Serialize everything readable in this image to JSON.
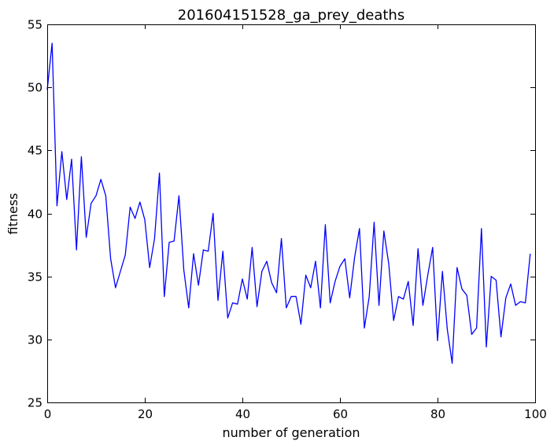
{
  "chart_data": {
    "type": "line",
    "title": "201604151528_ga_prey_deaths",
    "xlabel": "number of generation",
    "ylabel": "fitness",
    "xlim": [
      0,
      100
    ],
    "ylim": [
      25,
      55
    ],
    "xticks": [
      "0",
      "20",
      "40",
      "60",
      "80",
      "100"
    ],
    "yticks": [
      "25",
      "30",
      "35",
      "40",
      "45",
      "50",
      "55"
    ],
    "grid": false,
    "series": [
      {
        "color": "#0000ff",
        "x": [
          0,
          1,
          2,
          3,
          4,
          5,
          6,
          7,
          8,
          9,
          10,
          11,
          12,
          13,
          14,
          15,
          16,
          17,
          18,
          19,
          20,
          21,
          22,
          23,
          24,
          25,
          26,
          27,
          28,
          29,
          30,
          31,
          32,
          33,
          34,
          35,
          36,
          37,
          38,
          39,
          40,
          41,
          42,
          43,
          44,
          45,
          46,
          47,
          48,
          49,
          50,
          51,
          52,
          53,
          54,
          55,
          56,
          57,
          58,
          59,
          60,
          61,
          62,
          63,
          64,
          65,
          66,
          67,
          68,
          69,
          70,
          71,
          72,
          73,
          74,
          75,
          76,
          77,
          78,
          79,
          80,
          81,
          82,
          83,
          84,
          85,
          86,
          87,
          88,
          89,
          90,
          91,
          92,
          93,
          94,
          95,
          96,
          97,
          98,
          99
        ],
        "y": [
          49.8,
          53.5,
          40.6,
          44.9,
          41.1,
          44.3,
          37.1,
          44.5,
          38.1,
          40.8,
          41.4,
          42.7,
          41.4,
          36.4,
          34.1,
          35.4,
          36.7,
          40.5,
          39.6,
          40.9,
          39.5,
          35.7,
          38.0,
          43.2,
          33.4,
          37.7,
          37.8,
          41.4,
          35.5,
          32.5,
          36.8,
          34.3,
          37.1,
          37.0,
          40.0,
          33.1,
          37.0,
          31.7,
          32.9,
          32.8,
          34.8,
          33.2,
          37.3,
          32.6,
          35.4,
          36.2,
          34.5,
          33.7,
          38.0,
          32.5,
          33.4,
          33.4,
          31.2,
          35.1,
          34.1,
          36.2,
          32.5,
          39.1,
          32.9,
          34.6,
          35.8,
          36.4,
          33.3,
          36.5,
          38.8,
          30.9,
          33.4,
          39.3,
          32.7,
          38.6,
          36.0,
          31.5,
          33.4,
          33.2,
          34.6,
          31.1,
          37.2,
          32.7,
          35.1,
          37.3,
          29.9,
          35.4,
          30.8,
          28.1,
          35.7,
          34.0,
          33.5,
          30.4,
          30.9,
          38.8,
          29.4,
          35.0,
          34.7,
          30.2,
          33.3,
          34.4,
          32.7,
          33.0,
          32.9,
          36.8
        ]
      }
    ]
  }
}
